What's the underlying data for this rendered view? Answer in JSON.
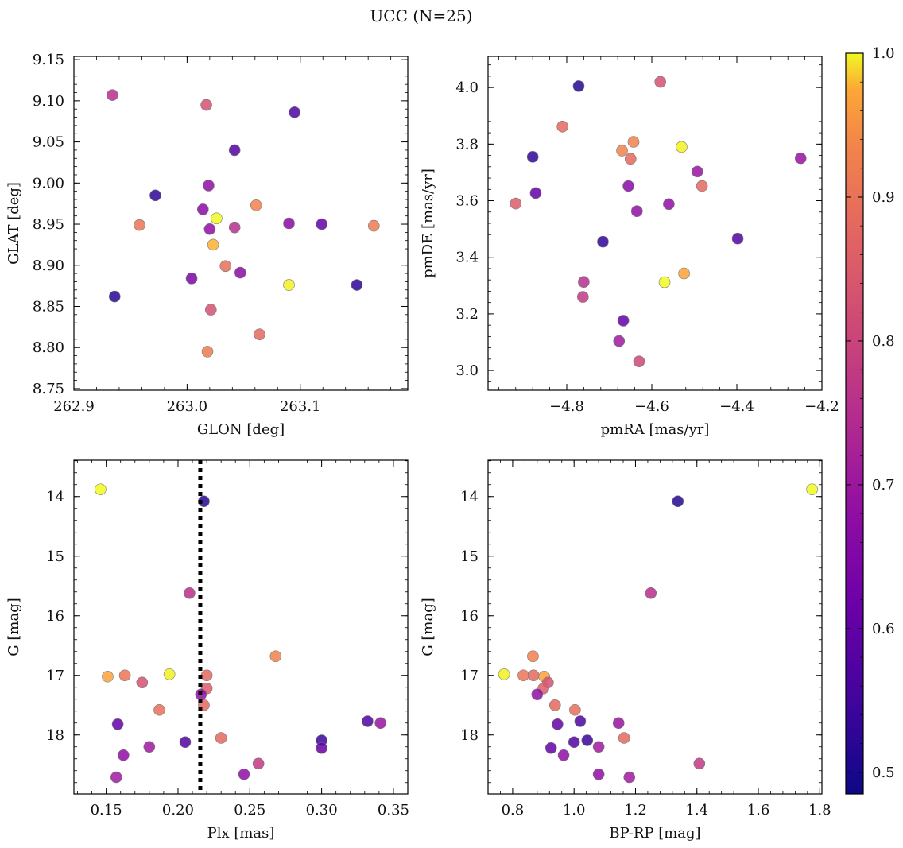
{
  "figure": {
    "title": "UCC (N=25)"
  },
  "colorbar": {
    "colormap": "plasma",
    "range": [
      0.485,
      1.0
    ],
    "ticks": [
      0.5,
      0.6,
      0.7,
      0.8,
      0.9,
      1.0
    ],
    "tick_labels": [
      "0.5",
      "0.6",
      "0.7",
      "0.8",
      "0.9",
      "1.0"
    ]
  },
  "chart_data": [
    {
      "type": "scatter",
      "xlabel": "GLON [deg]",
      "ylabel": "GLAT [deg]",
      "xlim": [
        262.9,
        263.195
      ],
      "ylim": [
        8.748,
        9.154
      ],
      "xticks": [
        262.9,
        263.0,
        263.1
      ],
      "xtick_labels": [
        "262.9",
        "263.0",
        "263.1"
      ],
      "yticks": [
        8.75,
        8.8,
        8.85,
        8.9,
        8.95,
        9.0,
        9.05,
        9.1,
        9.15
      ],
      "ytick_labels": [
        "8.75",
        "8.80",
        "8.85",
        "8.90",
        "8.95",
        "9.00",
        "9.05",
        "9.10",
        "9.15"
      ],
      "inverted_y": false,
      "grid": false,
      "points": [
        {
          "x": 262.934,
          "y": 9.107,
          "c": 0.7
        },
        {
          "x": 263.017,
          "y": 9.095,
          "c": 0.76
        },
        {
          "x": 263.095,
          "y": 9.086,
          "c": 0.55
        },
        {
          "x": 263.042,
          "y": 9.04,
          "c": 0.56
        },
        {
          "x": 262.972,
          "y": 8.985,
          "c": 0.52
        },
        {
          "x": 263.019,
          "y": 8.997,
          "c": 0.64
        },
        {
          "x": 263.014,
          "y": 8.968,
          "c": 0.63
        },
        {
          "x": 263.026,
          "y": 8.957,
          "c": 1.0
        },
        {
          "x": 263.061,
          "y": 8.973,
          "c": 0.84
        },
        {
          "x": 262.958,
          "y": 8.949,
          "c": 0.82
        },
        {
          "x": 263.02,
          "y": 8.944,
          "c": 0.64
        },
        {
          "x": 263.042,
          "y": 8.946,
          "c": 0.7
        },
        {
          "x": 263.09,
          "y": 8.951,
          "c": 0.63
        },
        {
          "x": 263.119,
          "y": 8.95,
          "c": 0.58
        },
        {
          "x": 263.165,
          "y": 8.948,
          "c": 0.83
        },
        {
          "x": 263.023,
          "y": 8.925,
          "c": 0.91
        },
        {
          "x": 263.034,
          "y": 8.899,
          "c": 0.81
        },
        {
          "x": 263.047,
          "y": 8.891,
          "c": 0.63
        },
        {
          "x": 263.004,
          "y": 8.884,
          "c": 0.61
        },
        {
          "x": 263.09,
          "y": 8.876,
          "c": 0.99
        },
        {
          "x": 263.15,
          "y": 8.876,
          "c": 0.52
        },
        {
          "x": 262.936,
          "y": 8.862,
          "c": 0.51
        },
        {
          "x": 263.021,
          "y": 8.846,
          "c": 0.76
        },
        {
          "x": 263.064,
          "y": 8.816,
          "c": 0.8
        },
        {
          "x": 263.018,
          "y": 8.795,
          "c": 0.83
        }
      ]
    },
    {
      "type": "scatter",
      "xlabel": "pmRA [mas/yr]",
      "ylabel": "pmDE [mas/yr]",
      "xlim": [
        -4.985,
        -4.2
      ],
      "ylim": [
        2.93,
        4.11
      ],
      "xticks": [
        -4.8,
        -4.6,
        -4.4,
        -4.2
      ],
      "xtick_labels": [
        "−4.8",
        "−4.6",
        "−4.4",
        "−4.2"
      ],
      "yticks": [
        3.0,
        3.2,
        3.4,
        3.6,
        3.8,
        4.0
      ],
      "ytick_labels": [
        "3.0",
        "3.2",
        "3.4",
        "3.6",
        "3.8",
        "4.0"
      ],
      "inverted_y": false,
      "grid": false,
      "points": [
        {
          "x": -4.772,
          "y": 4.005,
          "c": 0.51
        },
        {
          "x": -4.58,
          "y": 4.02,
          "c": 0.76
        },
        {
          "x": -4.81,
          "y": 3.862,
          "c": 0.8
        },
        {
          "x": -4.88,
          "y": 3.755,
          "c": 0.52
        },
        {
          "x": -4.67,
          "y": 3.777,
          "c": 0.84
        },
        {
          "x": -4.643,
          "y": 3.808,
          "c": 0.84
        },
        {
          "x": -4.65,
          "y": 3.748,
          "c": 0.8
        },
        {
          "x": -4.53,
          "y": 3.79,
          "c": 0.99
        },
        {
          "x": -4.25,
          "y": 3.75,
          "c": 0.65
        },
        {
          "x": -4.493,
          "y": 3.703,
          "c": 0.65
        },
        {
          "x": -4.482,
          "y": 3.652,
          "c": 0.8
        },
        {
          "x": -4.873,
          "y": 3.627,
          "c": 0.58
        },
        {
          "x": -4.655,
          "y": 3.652,
          "c": 0.63
        },
        {
          "x": -4.92,
          "y": 3.59,
          "c": 0.78
        },
        {
          "x": -4.56,
          "y": 3.588,
          "c": 0.64
        },
        {
          "x": -4.635,
          "y": 3.563,
          "c": 0.64
        },
        {
          "x": -4.715,
          "y": 3.455,
          "c": 0.52
        },
        {
          "x": -4.398,
          "y": 3.466,
          "c": 0.56
        },
        {
          "x": -4.524,
          "y": 3.343,
          "c": 0.89
        },
        {
          "x": -4.76,
          "y": 3.313,
          "c": 0.7
        },
        {
          "x": -4.57,
          "y": 3.312,
          "c": 1.0
        },
        {
          "x": -4.762,
          "y": 3.26,
          "c": 0.72
        },
        {
          "x": -4.667,
          "y": 3.176,
          "c": 0.58
        },
        {
          "x": -4.677,
          "y": 3.104,
          "c": 0.66
        },
        {
          "x": -4.63,
          "y": 3.032,
          "c": 0.74
        }
      ]
    },
    {
      "type": "scatter",
      "xlabel": "Plx [mas]",
      "ylabel": "G [mag]",
      "xlim": [
        0.1275,
        0.36
      ],
      "ylim": [
        18.99,
        13.39
      ],
      "xticks": [
        0.15,
        0.2,
        0.25,
        0.3,
        0.35
      ],
      "xtick_labels": [
        "0.15",
        "0.20",
        "0.25",
        "0.30",
        "0.35"
      ],
      "yticks": [
        14,
        15,
        16,
        17,
        18
      ],
      "ytick_labels": [
        "14",
        "15",
        "16",
        "17",
        "18"
      ],
      "inverted_y": true,
      "grid": false,
      "vline": {
        "x": 0.2155,
        "style": "dotted",
        "color": "#000000"
      },
      "points": [
        {
          "x": 0.146,
          "y": 13.88,
          "c": 1.0
        },
        {
          "x": 0.218,
          "y": 14.08,
          "c": 0.51
        },
        {
          "x": 0.208,
          "y": 15.62,
          "c": 0.7
        },
        {
          "x": 0.268,
          "y": 16.68,
          "c": 0.84
        },
        {
          "x": 0.151,
          "y": 17.02,
          "c": 0.89
        },
        {
          "x": 0.163,
          "y": 17.0,
          "c": 0.82
        },
        {
          "x": 0.194,
          "y": 16.98,
          "c": 0.99
        },
        {
          "x": 0.22,
          "y": 17.0,
          "c": 0.8
        },
        {
          "x": 0.175,
          "y": 17.12,
          "c": 0.76
        },
        {
          "x": 0.22,
          "y": 17.22,
          "c": 0.78
        },
        {
          "x": 0.216,
          "y": 17.32,
          "c": 0.64
        },
        {
          "x": 0.218,
          "y": 17.5,
          "c": 0.8
        },
        {
          "x": 0.187,
          "y": 17.58,
          "c": 0.81
        },
        {
          "x": 0.158,
          "y": 17.82,
          "c": 0.58
        },
        {
          "x": 0.332,
          "y": 17.77,
          "c": 0.55
        },
        {
          "x": 0.341,
          "y": 17.8,
          "c": 0.65
        },
        {
          "x": 0.23,
          "y": 18.05,
          "c": 0.8
        },
        {
          "x": 0.205,
          "y": 18.12,
          "c": 0.56
        },
        {
          "x": 0.3,
          "y": 18.09,
          "c": 0.53
        },
        {
          "x": 0.18,
          "y": 18.2,
          "c": 0.66
        },
        {
          "x": 0.3,
          "y": 18.22,
          "c": 0.58
        },
        {
          "x": 0.162,
          "y": 18.34,
          "c": 0.64
        },
        {
          "x": 0.256,
          "y": 18.48,
          "c": 0.72
        },
        {
          "x": 0.246,
          "y": 18.66,
          "c": 0.64
        },
        {
          "x": 0.157,
          "y": 18.71,
          "c": 0.66
        }
      ]
    },
    {
      "type": "scatter",
      "xlabel": "BP-RP [mag]",
      "ylabel": "G [mag]",
      "xlim": [
        0.72,
        1.807
      ],
      "ylim": [
        18.99,
        13.39
      ],
      "xticks": [
        0.8,
        1.0,
        1.2,
        1.4,
        1.6,
        1.8
      ],
      "xtick_labels": [
        "0.8",
        "1.0",
        "1.2",
        "1.4",
        "1.6",
        "1.8"
      ],
      "yticks": [
        14,
        15,
        16,
        17,
        18
      ],
      "ytick_labels": [
        "14",
        "15",
        "16",
        "17",
        "18"
      ],
      "inverted_y": true,
      "grid": false,
      "points": [
        {
          "x": 1.775,
          "y": 13.88,
          "c": 1.0
        },
        {
          "x": 1.338,
          "y": 14.08,
          "c": 0.51
        },
        {
          "x": 1.25,
          "y": 15.62,
          "c": 0.7
        },
        {
          "x": 0.866,
          "y": 16.68,
          "c": 0.84
        },
        {
          "x": 0.772,
          "y": 16.98,
          "c": 0.99
        },
        {
          "x": 0.835,
          "y": 17.0,
          "c": 0.82
        },
        {
          "x": 0.868,
          "y": 17.0,
          "c": 0.8
        },
        {
          "x": 0.903,
          "y": 17.02,
          "c": 0.89
        },
        {
          "x": 0.915,
          "y": 17.12,
          "c": 0.76
        },
        {
          "x": 0.9,
          "y": 17.22,
          "c": 0.78
        },
        {
          "x": 0.88,
          "y": 17.32,
          "c": 0.64
        },
        {
          "x": 0.938,
          "y": 17.5,
          "c": 0.8
        },
        {
          "x": 1.003,
          "y": 17.58,
          "c": 0.81
        },
        {
          "x": 0.946,
          "y": 17.82,
          "c": 0.58
        },
        {
          "x": 1.02,
          "y": 17.77,
          "c": 0.55
        },
        {
          "x": 1.145,
          "y": 17.8,
          "c": 0.65
        },
        {
          "x": 1.163,
          "y": 18.05,
          "c": 0.8
        },
        {
          "x": 1.0,
          "y": 18.12,
          "c": 0.56
        },
        {
          "x": 1.043,
          "y": 18.09,
          "c": 0.53
        },
        {
          "x": 0.925,
          "y": 18.22,
          "c": 0.58
        },
        {
          "x": 1.08,
          "y": 18.2,
          "c": 0.66
        },
        {
          "x": 0.966,
          "y": 18.34,
          "c": 0.64
        },
        {
          "x": 1.408,
          "y": 18.48,
          "c": 0.72
        },
        {
          "x": 1.08,
          "y": 18.66,
          "c": 0.64
        },
        {
          "x": 1.18,
          "y": 18.71,
          "c": 0.66
        }
      ]
    }
  ]
}
